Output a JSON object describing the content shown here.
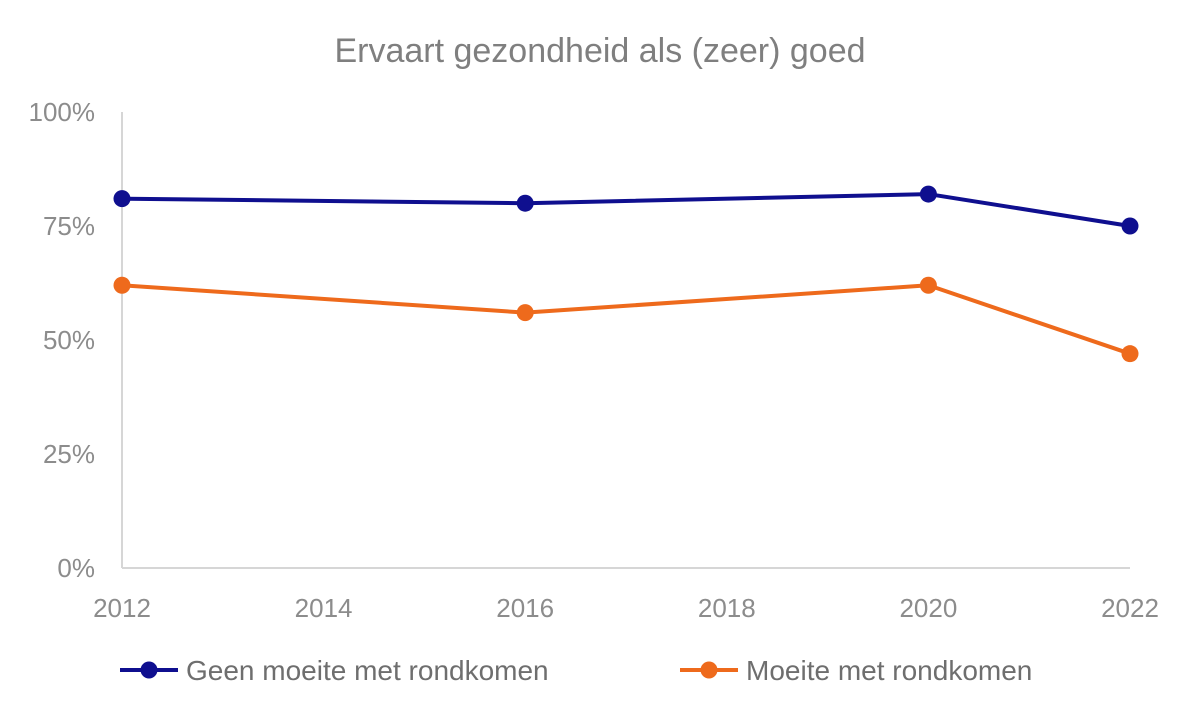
{
  "chart_data": {
    "type": "line",
    "title": "Ervaart gezondheid als (zeer) goed",
    "xlabel": "",
    "ylabel": "",
    "x": [
      2012,
      2016,
      2020,
      2022
    ],
    "x_ticks": [
      "2012",
      "2014",
      "2016",
      "2018",
      "2020",
      "2022"
    ],
    "x_range": [
      2012,
      2022
    ],
    "y_ticks": [
      "0%",
      "25%",
      "50%",
      "75%",
      "100%"
    ],
    "ylim": [
      0,
      100
    ],
    "grid": false,
    "legend_position": "bottom",
    "series": [
      {
        "name": "Geen moeite met rondkomen",
        "color": "#0f0f8f",
        "values": [
          81,
          80,
          82,
          75
        ]
      },
      {
        "name": "Moeite met rondkomen",
        "color": "#ee6a1c",
        "values": [
          62,
          56,
          62,
          47
        ]
      }
    ]
  }
}
